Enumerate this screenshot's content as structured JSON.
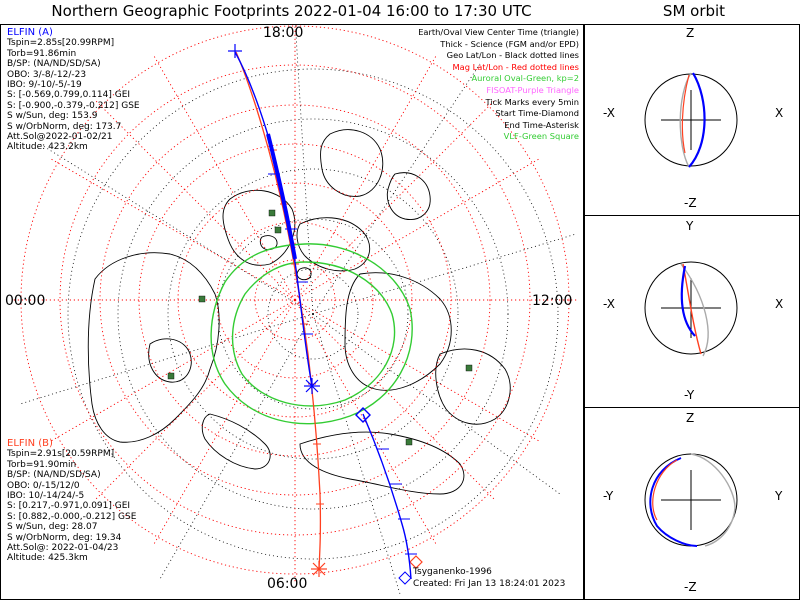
{
  "title": "Northern Geographic Footprints 2022-01-04 16:00 to 17:30 UTC",
  "sm_title": "SM orbit",
  "clock_labels": {
    "top": "18:00",
    "left": "00:00",
    "right": "12:00",
    "bottom": "06:00"
  },
  "elfin_a": {
    "name": "ELFIN (A)",
    "lines": [
      "Tspin=2.85s[20.99RPM]",
      "Torb=91.86min",
      "B/SP: (NA/ND/SD/SA)",
      "OBO: 3/-8/-12/-23",
      "IBO: 9/-10/-5/-19",
      "S: [-0.569,0.799,0.114] GEI",
      "S: [-0.900,-0.379,-0.212] GSE",
      "S w/Sun, deg: 153.9",
      "S w/OrbNorm, deg: 173.7",
      "Att.Sol@2022-01-02/21",
      "Altitude: 423.2km"
    ],
    "color": "#0000ff"
  },
  "elfin_b": {
    "name": "ELFIN (B)",
    "lines": [
      "Tspin=2.91s[20.59RPM]",
      "Torb=91.90min",
      "B/SP: (NA/ND/SD/SA)",
      "OBO: 0/-15/12/0",
      "IBO: 10/-14/24/-5",
      "S: [0.217,-0.971,0.091] GEI",
      "S: [0.882,-0.000,-0.212] GSE",
      "S w/Sun, deg: 28.07",
      "S w/OrbNorm, deg: 19.34",
      "Att.Sol@: 2022-01-04/23",
      "Altitude: 425.3km"
    ],
    "color": "#ff4020"
  },
  "legend": [
    {
      "text": "Earth/Oval View Center Time (triangle)",
      "color": "#000000"
    },
    {
      "text": "Thick - Science (FGM and/or EPD)",
      "color": "#000000"
    },
    {
      "text": "Geo Lat/Lon - Black dotted lines",
      "color": "#000000"
    },
    {
      "text": "Mag Lat/Lon - Red dotted lines",
      "color": "#ff0000"
    },
    {
      "text": "Auroral Oval-Green, kp=2",
      "color": "#33cc33"
    },
    {
      "text": "FISOAT-Purple Triangle",
      "color": "#ff66ff"
    },
    {
      "text": "Tick Marks every 5min",
      "color": "#000000"
    },
    {
      "text": "Start Time-Diamond",
      "color": "#000000"
    },
    {
      "text": "End Time-Asterisk",
      "color": "#000000"
    },
    {
      "text": "VLF-Green Square",
      "color": "#33cc33"
    }
  ],
  "model_label": "Tsyganenko-1996",
  "created": "Created: Fri Jan 13 18:24:01 2023",
  "sm_panels": [
    {
      "top": "Z",
      "bottom": "-Z",
      "left": "-X",
      "right": "X"
    },
    {
      "top": "Y",
      "bottom": "-Y",
      "left": "-X",
      "right": "X"
    },
    {
      "top": "Z",
      "bottom": "-Z",
      "left": "-Y",
      "right": "Y"
    }
  ],
  "colors": {
    "mag_grid": "#ff0000",
    "geo_grid": "#000000",
    "oval": "#33cc33",
    "vlf": "#3a7a3a"
  }
}
